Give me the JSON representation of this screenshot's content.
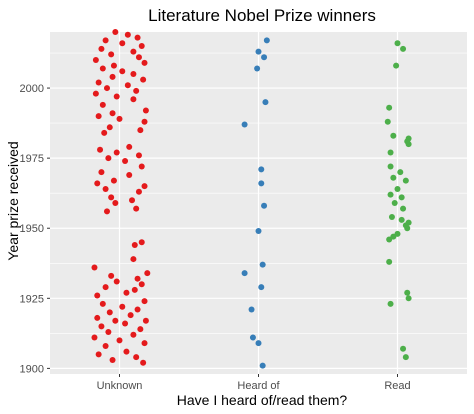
{
  "chart_data": {
    "type": "scatter",
    "title": "Literature Nobel Prize winners",
    "xlabel": "Have I heard of/read them?",
    "ylabel": "Year prize received",
    "categories": [
      "Unknown",
      "Heard of",
      "Read"
    ],
    "ylim": [
      1898,
      2020
    ],
    "yticks": [
      1900,
      1925,
      1950,
      1975,
      2000
    ],
    "grid": true,
    "legend": "none",
    "colors": {
      "panel": "#ebebeb",
      "grid": "#ffffff",
      "tick_text": "#4d4d4d"
    },
    "series": [
      {
        "category": "Unknown",
        "color": "#e41a1c",
        "years": [
          1902,
          1903,
          1904,
          1905,
          1906,
          1908,
          1909,
          1910,
          1911,
          1912,
          1913,
          1914,
          1915,
          1916,
          1917,
          1917,
          1918,
          1919,
          1920,
          1921,
          1922,
          1923,
          1924,
          1926,
          1927,
          1928,
          1929,
          1930,
          1931,
          1932,
          1933,
          1934,
          1936,
          1939,
          1944,
          1945,
          1956,
          1957,
          1959,
          1960,
          1961,
          1963,
          1964,
          1965,
          1966,
          1967,
          1969,
          1970,
          1972,
          1974,
          1975,
          1976,
          1977,
          1978,
          1979,
          1984,
          1985,
          1986,
          1988,
          1989,
          1990,
          1991,
          1992,
          1994,
          1996,
          1997,
          1998,
          1999,
          2000,
          2001,
          2002,
          2003,
          2004,
          2005,
          2006,
          2007,
          2008,
          2009,
          2010,
          2011,
          2012,
          2013,
          2014,
          2015,
          2016,
          2017,
          2018,
          2019,
          2020
        ],
        "jitter": [
          0.17,
          -0.05,
          0.12,
          -0.15,
          0.05,
          -0.1,
          0.18,
          0.0,
          -0.18,
          0.1,
          -0.08,
          0.15,
          -0.13,
          0.04,
          0.19,
          -0.03,
          -0.16,
          0.08,
          -0.07,
          0.13,
          0.02,
          -0.12,
          0.18,
          -0.16,
          0.05,
          0.11,
          -0.1,
          0.16,
          -0.02,
          0.13,
          -0.06,
          0.2,
          -0.18,
          0.1,
          0.11,
          0.16,
          -0.09,
          0.12,
          -0.03,
          0.09,
          -0.06,
          0.14,
          -0.1,
          0.18,
          -0.16,
          -0.04,
          0.07,
          -0.13,
          0.16,
          0.04,
          -0.08,
          0.14,
          -0.02,
          -0.14,
          0.07,
          -0.11,
          0.15,
          -0.07,
          0.18,
          0.0,
          -0.15,
          -0.05,
          0.19,
          -0.12,
          0.1,
          -0.02,
          -0.17,
          0.12,
          -0.09,
          0.06,
          -0.15,
          0.17,
          -0.05,
          0.1,
          0.02,
          -0.12,
          -0.04,
          0.18,
          -0.17,
          0.14,
          -0.06,
          0.1,
          -0.13,
          0.16,
          0.02,
          -0.1,
          0.13,
          0.06,
          -0.03
        ]
      },
      {
        "category": "Heard of",
        "color": "#377eb8",
        "years": [
          1901,
          1909,
          1911,
          1921,
          1929,
          1934,
          1937,
          1949,
          1958,
          1966,
          1971,
          1987,
          1995,
          2007,
          2011,
          2013,
          2017
        ],
        "jitter": [
          0.03,
          0.0,
          -0.04,
          -0.05,
          0.02,
          -0.1,
          0.03,
          0.0,
          0.04,
          0.02,
          0.02,
          -0.1,
          0.05,
          -0.01,
          0.04,
          0.0,
          0.06
        ]
      },
      {
        "category": "Read",
        "color": "#4daf4a",
        "years": [
          1904,
          1907,
          1923,
          1925,
          1927,
          1938,
          1946,
          1947,
          1948,
          1950,
          1951,
          1952,
          1953,
          1954,
          1957,
          1959,
          1961,
          1962,
          1964,
          1967,
          1968,
          1970,
          1972,
          1977,
          1980,
          1981,
          1982,
          1983,
          1988,
          1993,
          2008,
          2014,
          2016
        ],
        "jitter": [
          0.06,
          0.04,
          -0.05,
          0.08,
          0.07,
          -0.06,
          -0.06,
          -0.03,
          0.0,
          0.07,
          0.06,
          0.08,
          0.03,
          -0.04,
          0.04,
          -0.02,
          0.03,
          -0.05,
          0.0,
          0.06,
          -0.03,
          0.02,
          -0.05,
          -0.05,
          0.08,
          0.07,
          0.08,
          -0.03,
          -0.07,
          -0.06,
          -0.01,
          0.04,
          0.0
        ]
      }
    ]
  }
}
